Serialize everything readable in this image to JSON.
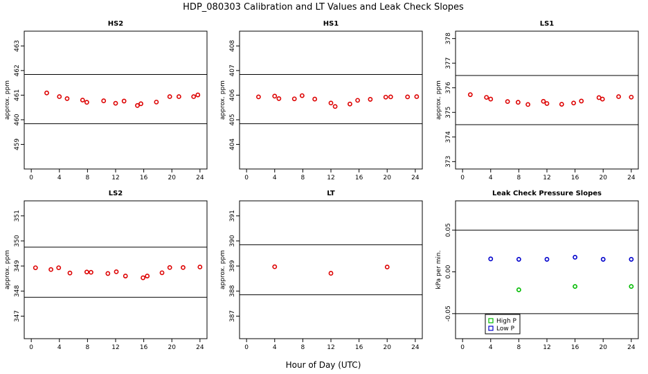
{
  "figure": {
    "title": "HDP_080303  Calibration and LT Values and Leak Check Slopes",
    "xlabel": "Hour of Day (UTC)"
  },
  "colors": {
    "red": "#dd0000",
    "green": "#00bb00",
    "blue": "#0000cc",
    "line": "#000000"
  },
  "chart_data": [
    {
      "type": "scatter",
      "title": "HS2",
      "ylabel": "approx. ppm",
      "xlim": [
        -1,
        25
      ],
      "xticks": [
        0,
        4,
        8,
        12,
        16,
        20,
        24
      ],
      "ylim": [
        458.0,
        463.6
      ],
      "yticks": [
        459,
        460,
        461,
        462,
        463
      ],
      "hlines": [
        461.84,
        459.84
      ],
      "series": [
        {
          "name": "HS2",
          "color": "red",
          "marker": "circle",
          "x": [
            2.2,
            4.0,
            5.1,
            7.3,
            7.9,
            10.3,
            12.0,
            13.2,
            15.1,
            15.6,
            17.8,
            19.7,
            21.0,
            23.1,
            23.7
          ],
          "y": [
            461.09,
            460.94,
            460.86,
            460.8,
            460.71,
            460.77,
            460.67,
            460.76,
            460.58,
            460.65,
            460.72,
            460.94,
            460.94,
            460.94,
            461.01
          ]
        }
      ]
    },
    {
      "type": "scatter",
      "title": "HS1",
      "ylabel": "approx. ppm",
      "xlim": [
        -1,
        25
      ],
      "xticks": [
        0,
        4,
        8,
        12,
        16,
        20,
        24
      ],
      "ylim": [
        403.0,
        408.6
      ],
      "yticks": [
        404,
        405,
        406,
        407,
        408
      ],
      "hlines": [
        406.84,
        404.84
      ],
      "series": [
        {
          "name": "HS1",
          "color": "red",
          "marker": "circle",
          "x": [
            1.7,
            4.0,
            4.6,
            6.8,
            7.9,
            9.7,
            12.0,
            12.6,
            14.7,
            15.8,
            17.6,
            19.8,
            20.5,
            22.9,
            24.2
          ],
          "y": [
            405.93,
            405.96,
            405.86,
            405.85,
            405.98,
            405.84,
            405.68,
            405.54,
            405.64,
            405.79,
            405.83,
            405.92,
            405.93,
            405.93,
            405.94
          ]
        }
      ]
    },
    {
      "type": "scatter",
      "title": "LS1",
      "ylabel": "approx. ppm",
      "xlim": [
        -1,
        25
      ],
      "xticks": [
        0,
        4,
        8,
        12,
        16,
        20,
        24
      ],
      "ylim": [
        372.7,
        378.3
      ],
      "yticks": [
        373,
        374,
        375,
        376,
        377,
        378
      ],
      "hlines": [
        376.5,
        374.5
      ],
      "series": [
        {
          "name": "LS1",
          "color": "red",
          "marker": "circle",
          "x": [
            1.1,
            3.4,
            4.0,
            6.4,
            7.9,
            9.3,
            11.5,
            12.0,
            14.1,
            15.8,
            16.9,
            19.4,
            19.9,
            22.2,
            24.0
          ],
          "y": [
            375.72,
            375.61,
            375.54,
            375.44,
            375.41,
            375.32,
            375.45,
            375.36,
            375.33,
            375.38,
            375.46,
            375.6,
            375.54,
            375.64,
            375.62
          ]
        }
      ]
    },
    {
      "type": "scatter",
      "title": "LS2",
      "ylabel": "approx. ppm",
      "xlim": [
        -1,
        25
      ],
      "xticks": [
        0,
        4,
        8,
        12,
        16,
        20,
        24
      ],
      "ylim": [
        346.1,
        351.6
      ],
      "yticks": [
        347,
        348,
        349,
        350,
        351
      ],
      "hlines": [
        349.75,
        347.75
      ],
      "series": [
        {
          "name": "LS2",
          "color": "red",
          "marker": "circle",
          "x": [
            0.6,
            2.8,
            3.9,
            5.5,
            7.9,
            8.5,
            10.9,
            12.1,
            13.4,
            15.9,
            16.5,
            18.6,
            19.7,
            21.6,
            24.0
          ],
          "y": [
            348.93,
            348.86,
            348.93,
            348.72,
            348.76,
            348.75,
            348.7,
            348.77,
            348.6,
            348.53,
            348.6,
            348.73,
            348.94,
            348.94,
            348.96
          ]
        }
      ]
    },
    {
      "type": "scatter",
      "title": "LT",
      "ylabel": "approx. ppm",
      "xlim": [
        -1,
        25
      ],
      "xticks": [
        0,
        4,
        8,
        12,
        16,
        20,
        24
      ],
      "ylim": [
        386.1,
        391.6
      ],
      "yticks": [
        387,
        388,
        389,
        390,
        391
      ],
      "hlines": [
        389.85,
        387.85
      ],
      "series": [
        {
          "name": "LT",
          "color": "red",
          "marker": "circle",
          "x": [
            4.0,
            12.0,
            20.0
          ],
          "y": [
            388.97,
            388.71,
            388.96
          ]
        }
      ]
    },
    {
      "type": "scatter",
      "title": "Leak Check Pressure Slopes",
      "ylabel": "kPa per min.",
      "xlim": [
        -1,
        25
      ],
      "xticks": [
        0,
        4,
        8,
        12,
        16,
        20,
        24
      ],
      "ylim": [
        -0.08,
        0.085
      ],
      "yticks": [
        -0.05,
        0.0,
        0.05
      ],
      "ytick_labels": [
        "-0.05",
        "0.00",
        "0.05"
      ],
      "hlines": [
        0.05,
        -0.05
      ],
      "legend": "bottom-left",
      "series": [
        {
          "name": "High P",
          "color": "green",
          "marker": "circle",
          "x": [
            8.0,
            16.0,
            24.0
          ],
          "y": [
            -0.0215,
            -0.0175,
            -0.0175
          ]
        },
        {
          "name": "Low P",
          "color": "blue",
          "marker": "circle",
          "x": [
            4.0,
            8.0,
            12.0,
            16.0,
            20.0,
            24.0
          ],
          "y": [
            0.0155,
            0.015,
            0.015,
            0.0175,
            0.015,
            0.015
          ]
        }
      ]
    }
  ]
}
